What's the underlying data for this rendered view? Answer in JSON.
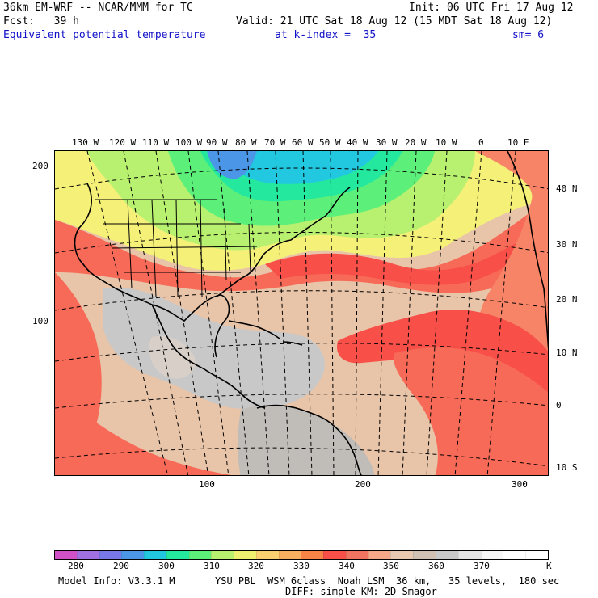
{
  "header": {
    "model_line": "36km EM-WRF -- NCAR/MMM for TC",
    "init_line": "Init: 06 UTC Fri 17 Aug 12",
    "fcst_line": "Fcst:   39 h",
    "valid_line": "Valid: 21 UTC Sat 18 Aug 12 (15 MDT Sat 18 Aug 12)",
    "field_name": "Equivalent potential temperature",
    "level_text": "at k-index =  35",
    "smoothing": "sm= 6"
  },
  "map": {
    "longitude_labels": [
      "130 W",
      "120 W",
      "110 W",
      "100 W",
      "90 W",
      "80 W",
      "70 W",
      "60 W",
      "50 W",
      "40 W",
      "30 W",
      "20 W",
      "10 W",
      "0",
      "10 E"
    ],
    "latitude_labels": [
      "40 N",
      "30 N",
      "20 N",
      "10 N",
      "0",
      "10 S"
    ],
    "grid_y_labels": [
      "200",
      "100"
    ],
    "grid_x_labels": [
      "100",
      "200",
      "300"
    ]
  },
  "colorbar": {
    "colors": [
      "#d050c8",
      "#a070e0",
      "#7878e8",
      "#4c96e8",
      "#22c8e0",
      "#24e89e",
      "#5cf07a",
      "#b8f070",
      "#f0f070",
      "#f8d070",
      "#f8b060",
      "#f88448",
      "#f85048",
      "#f07460",
      "#f8a888",
      "#e8c8b0",
      "#d0c0b4",
      "#c8c8c8",
      "#e4e4e4",
      "#f6f6f6",
      "#ffffff",
      "#ffffff"
    ],
    "labels": [
      "280",
      "290",
      "300",
      "310",
      "320",
      "330",
      "340",
      "350",
      "360",
      "370",
      "K"
    ]
  },
  "footer": {
    "model_info": "Model Info: V3.3.1 M",
    "physics_line": "YSU PBL  WSM 6class  Noah LSM  36 km,   35 levels,  180 sec",
    "diff_line": "DIFF: simple KM: 2D Smagor"
  }
}
